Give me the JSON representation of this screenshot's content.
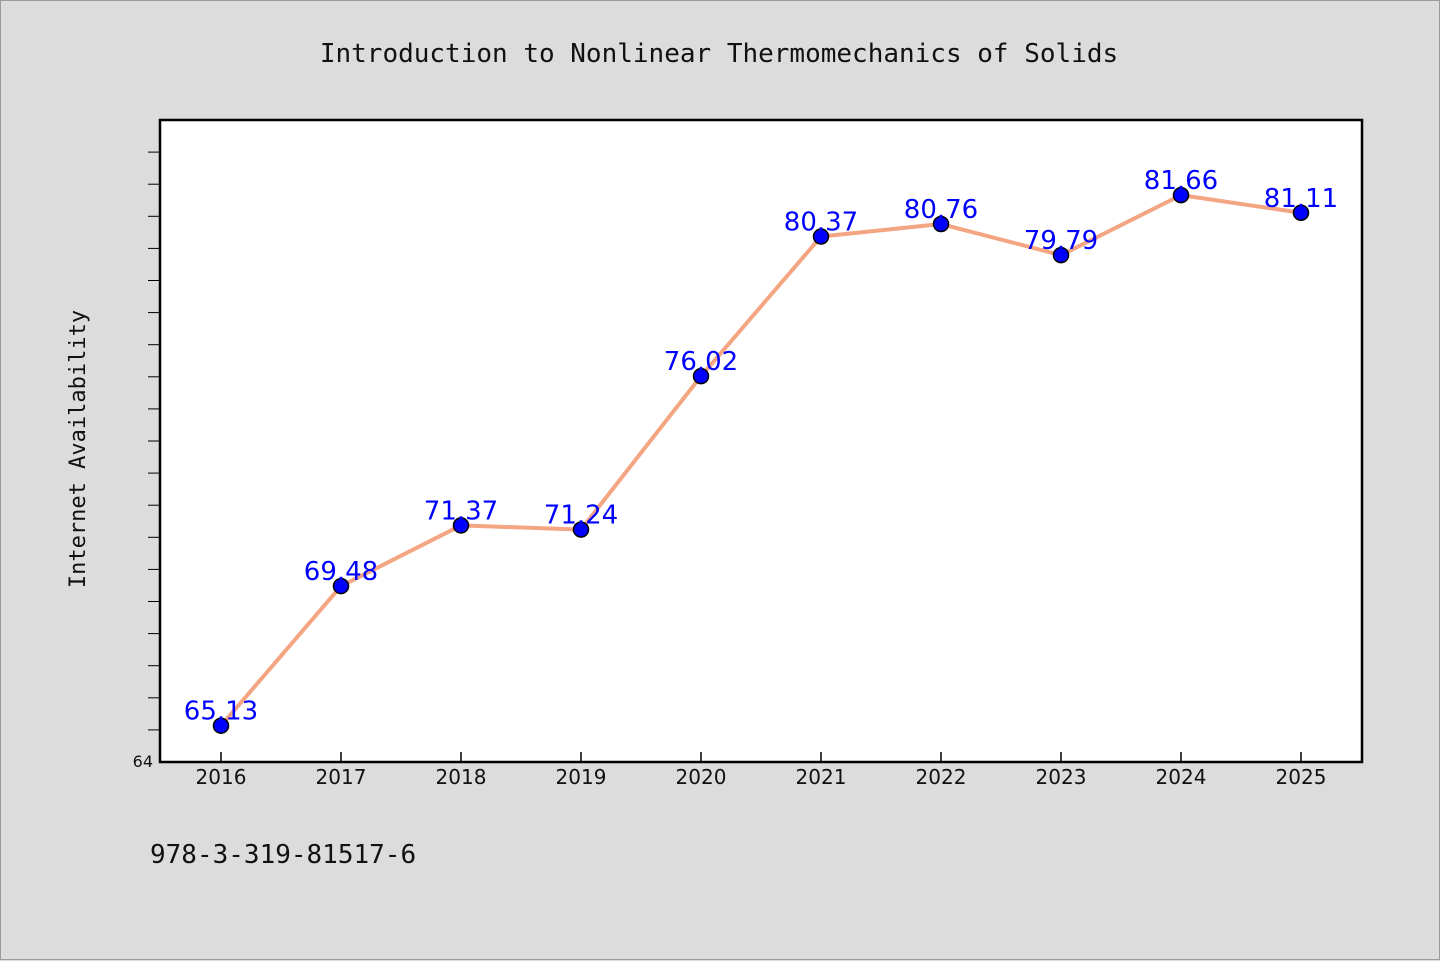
{
  "chart_data": {
    "type": "line",
    "title": "Introduction to Nonlinear Thermomechanics of Solids",
    "xlabel": "",
    "ylabel": "Internet Availability",
    "categories": [
      "2016",
      "2017",
      "2018",
      "2019",
      "2020",
      "2021",
      "2022",
      "2023",
      "2024",
      "2025"
    ],
    "series": [
      {
        "values": [
          65.13,
          69.48,
          71.37,
          71.24,
          76.02,
          80.37,
          80.76,
          79.79,
          81.66,
          81.11
        ],
        "labels": [
          "65.13",
          "69.48",
          "71.37",
          "71.24",
          "76.02",
          "80.37",
          "80.76",
          "79.79",
          "81.66",
          "81.11"
        ]
      }
    ],
    "ylim": [
      64,
      84
    ],
    "y_tick_labels": [
      "64"
    ],
    "grid": false,
    "legend": "none",
    "colors": {
      "line": "#f4a582",
      "marker": "#0000ff",
      "data_label": "#0000ff",
      "plot_background": "#ffffff",
      "page_background": "#dcdcdc"
    }
  },
  "footer_text": "978-3-319-81517-6"
}
